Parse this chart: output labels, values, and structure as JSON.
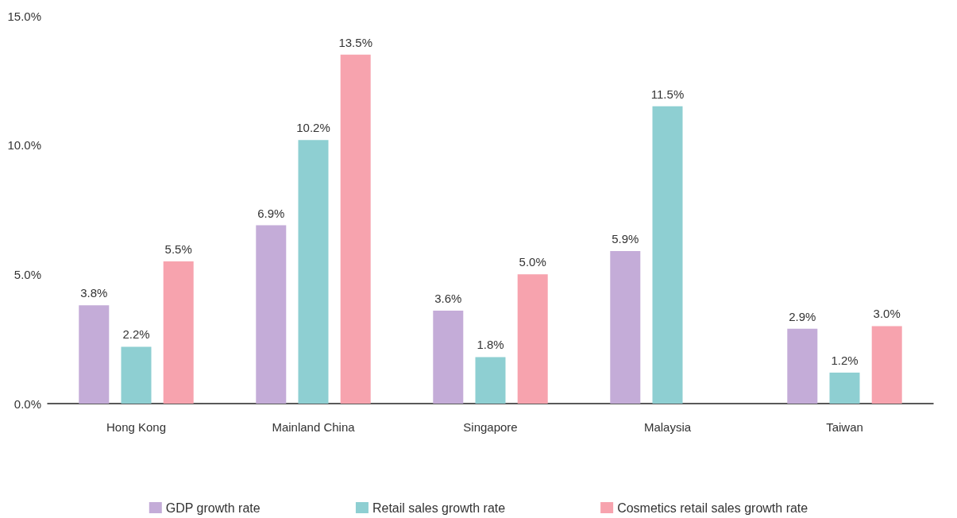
{
  "chart_data": {
    "type": "bar",
    "categories": [
      "Hong Kong",
      "Mainland China",
      "Singapore",
      "Malaysia",
      "Taiwan"
    ],
    "series": [
      {
        "name": "GDP growth rate",
        "color": "#c4acd8",
        "values": [
          3.8,
          6.9,
          3.6,
          5.9,
          2.9
        ],
        "value_labels": [
          "3.8%",
          "6.9%",
          "3.6%",
          "5.9%",
          "2.9%"
        ]
      },
      {
        "name": "Retail sales growth rate",
        "color": "#8ecfd2",
        "values": [
          2.2,
          10.2,
          1.8,
          11.5,
          1.2
        ],
        "value_labels": [
          "2.2%",
          "10.2%",
          "1.8%",
          "11.5%",
          "1.2%"
        ]
      },
      {
        "name": "Cosmetics retail sales growth rate",
        "color": "#f7a3ae",
        "values": [
          5.5,
          13.5,
          5.0,
          null,
          3.0
        ],
        "value_labels": [
          "5.5%",
          "13.5%",
          "5.0%",
          null,
          "3.0%"
        ]
      }
    ],
    "ylim": [
      0,
      15
    ],
    "yticks": [
      {
        "value": 0,
        "label": "0.0%"
      },
      {
        "value": 5,
        "label": "5.0%"
      },
      {
        "value": 10,
        "label": "10.0%"
      },
      {
        "value": 15,
        "label": "15.0%"
      }
    ],
    "grid": false,
    "legend": "bottom"
  }
}
